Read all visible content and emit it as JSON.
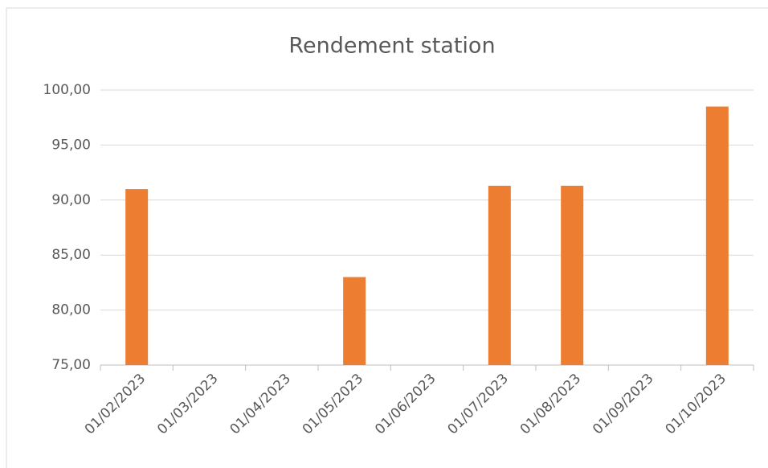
{
  "chart_data": {
    "type": "bar",
    "title": "Rendement station",
    "categories": [
      "01/02/2023",
      "01/03/2023",
      "01/04/2023",
      "01/05/2023",
      "01/06/2023",
      "01/07/2023",
      "01/08/2023",
      "01/09/2023",
      "01/10/2023"
    ],
    "values": [
      91.0,
      null,
      null,
      83.0,
      null,
      91.3,
      91.3,
      null,
      98.5
    ],
    "color": "#ed7d31",
    "ylim": [
      75,
      100
    ],
    "yticks": [
      {
        "value": 75,
        "label": "75,00"
      },
      {
        "value": 80,
        "label": "80,00"
      },
      {
        "value": 85,
        "label": "85,00"
      },
      {
        "value": 90,
        "label": "90,00"
      },
      {
        "value": 95,
        "label": "95,00"
      },
      {
        "value": 100,
        "label": "100,00"
      }
    ],
    "grid": true
  }
}
